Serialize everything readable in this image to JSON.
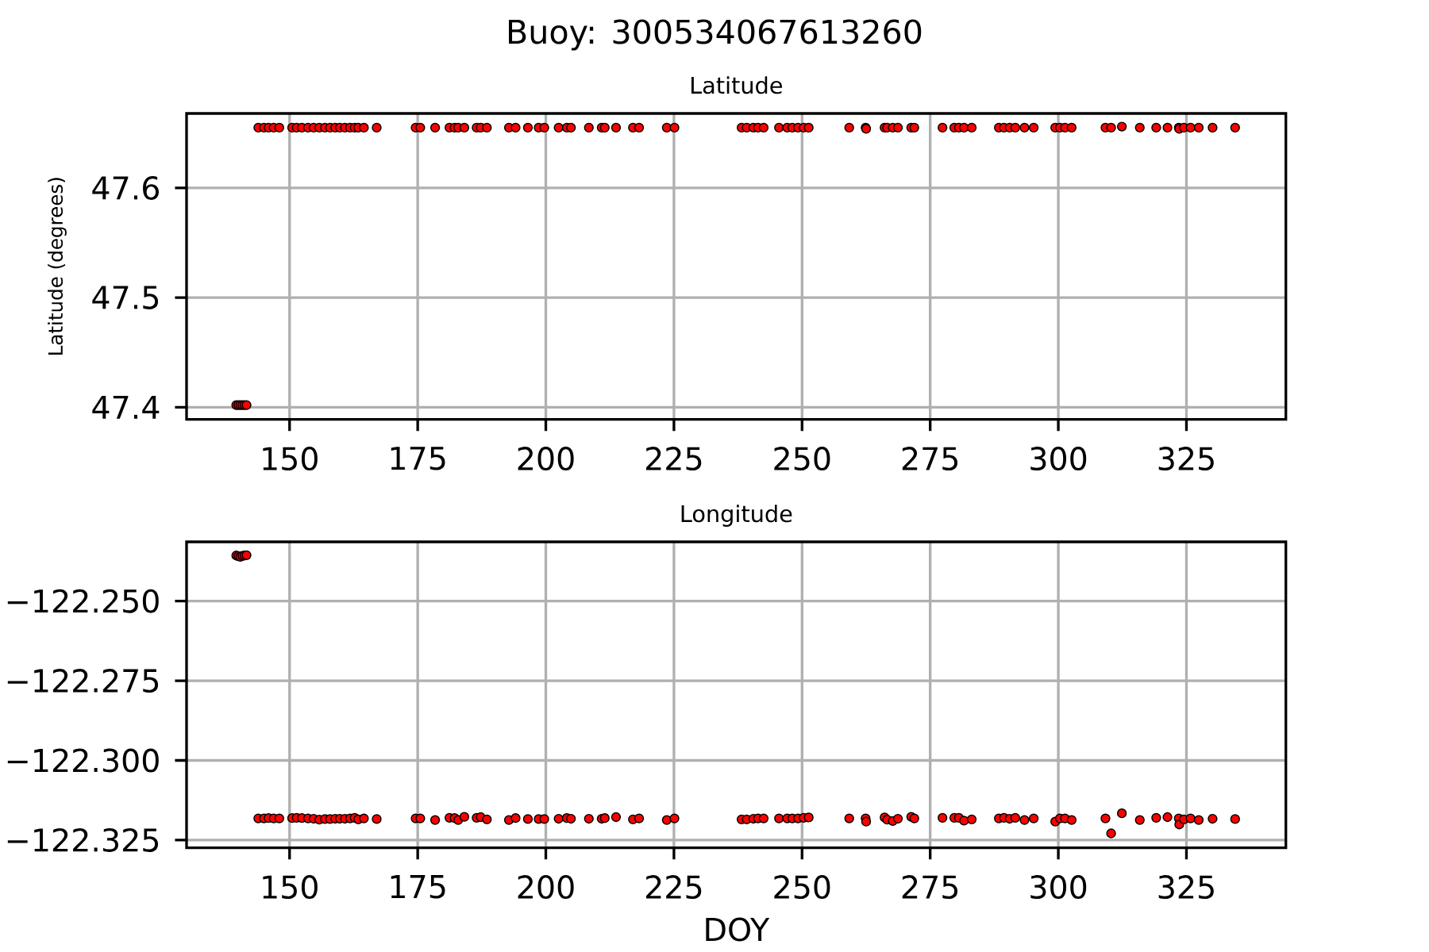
{
  "chart_data": [
    {
      "type": "scatter",
      "title": "Buoy: 300534067613260",
      "subtitle": "Latitude",
      "ylabel": "Latitude (degrees)",
      "color": "#ff0000",
      "marker": "circle",
      "grid": true,
      "xlim": [
        129.9,
        344.4
      ],
      "xticks": [
        150,
        175,
        200,
        225,
        250,
        275,
        300,
        325
      ],
      "ylim": [
        47.389,
        47.668
      ],
      "yticks": [
        47.4,
        47.5,
        47.6
      ],
      "x": [
        139.6,
        140.0,
        140.4,
        140.8,
        141.2,
        141.6,
        143.9,
        145.0,
        145.9,
        146.9,
        148.0,
        150.5,
        151.4,
        152.4,
        153.6,
        154.7,
        155.8,
        156.9,
        157.9,
        158.9,
        159.8,
        160.8,
        161.8,
        162.7,
        163.4,
        164.5,
        167.0,
        174.6,
        175.5,
        178.4,
        181.2,
        182.2,
        182.9,
        184.1,
        186.5,
        187.3,
        188.5,
        192.8,
        194.1,
        196.5,
        198.6,
        199.7,
        202.5,
        204.1,
        204.9,
        208.4,
        210.9,
        211.5,
        213.7,
        217.0,
        218.2,
        223.6,
        225.1,
        238.2,
        239.2,
        240.5,
        241.4,
        242.5,
        245.5,
        247.1,
        248.1,
        249.2,
        250.3,
        251.3,
        259.2,
        262.4,
        262.5,
        266.1,
        266.6,
        267.7,
        268.7,
        271.3,
        271.9,
        277.4,
        279.7,
        280.6,
        281.6,
        283.1,
        288.4,
        289.4,
        290.5,
        291.6,
        293.4,
        295.2,
        299.4,
        300.3,
        301.3,
        302.6,
        309.2,
        310.3,
        312.4,
        315.9,
        319.1,
        321.3,
        323.5,
        323.6,
        324.5,
        325.8,
        327.4,
        330.1,
        334.5
      ],
      "values": [
        47.402,
        47.402,
        47.402,
        47.402,
        47.402,
        47.402,
        47.655,
        47.655,
        47.655,
        47.655,
        47.655,
        47.655,
        47.655,
        47.655,
        47.655,
        47.655,
        47.655,
        47.655,
        47.655,
        47.655,
        47.655,
        47.655,
        47.655,
        47.655,
        47.655,
        47.655,
        47.655,
        47.655,
        47.655,
        47.655,
        47.655,
        47.655,
        47.655,
        47.655,
        47.655,
        47.655,
        47.655,
        47.655,
        47.655,
        47.655,
        47.655,
        47.655,
        47.655,
        47.655,
        47.655,
        47.655,
        47.655,
        47.655,
        47.655,
        47.655,
        47.655,
        47.655,
        47.655,
        47.655,
        47.655,
        47.655,
        47.655,
        47.655,
        47.655,
        47.655,
        47.655,
        47.655,
        47.655,
        47.655,
        47.655,
        47.655,
        47.654,
        47.655,
        47.655,
        47.655,
        47.655,
        47.655,
        47.655,
        47.655,
        47.655,
        47.655,
        47.655,
        47.655,
        47.655,
        47.655,
        47.655,
        47.655,
        47.655,
        47.655,
        47.655,
        47.655,
        47.655,
        47.655,
        47.655,
        47.655,
        47.656,
        47.655,
        47.655,
        47.655,
        47.655,
        47.654,
        47.655,
        47.655,
        47.655,
        47.655,
        47.655
      ]
    },
    {
      "type": "scatter",
      "title": "Longitude",
      "xlabel": "DOY",
      "color": "#ff0000",
      "marker": "circle",
      "grid": true,
      "xlim": [
        129.9,
        344.4
      ],
      "xticks": [
        150,
        175,
        200,
        225,
        250,
        275,
        300,
        325
      ],
      "ylim": [
        -122.3274,
        -122.2314
      ],
      "yticks": [
        {
          "value": -122.325,
          "label": "−122.325"
        },
        {
          "value": -122.3,
          "label": "−122.300"
        },
        {
          "value": -122.275,
          "label": "−122.275"
        },
        {
          "value": -122.25,
          "label": "−122.250"
        }
      ],
      "x": [
        139.6,
        140.0,
        140.4,
        140.8,
        141.2,
        141.6,
        143.9,
        145.0,
        145.9,
        146.9,
        148.0,
        150.5,
        151.4,
        152.4,
        153.6,
        154.7,
        155.8,
        156.9,
        157.9,
        158.9,
        159.8,
        160.8,
        161.8,
        162.7,
        163.4,
        164.5,
        167.0,
        174.6,
        175.5,
        178.4,
        181.2,
        182.2,
        182.9,
        184.1,
        186.5,
        187.3,
        188.5,
        192.8,
        194.1,
        196.5,
        198.6,
        199.7,
        202.5,
        204.1,
        204.9,
        208.4,
        210.9,
        211.5,
        213.7,
        217.0,
        218.2,
        223.6,
        225.1,
        238.2,
        239.2,
        240.5,
        241.4,
        242.5,
        245.5,
        247.1,
        248.1,
        249.2,
        250.3,
        251.3,
        259.2,
        262.4,
        262.5,
        266.1,
        266.6,
        267.7,
        268.7,
        271.3,
        271.9,
        277.4,
        279.7,
        280.6,
        281.6,
        283.1,
        288.4,
        289.4,
        290.5,
        291.6,
        293.4,
        295.2,
        299.4,
        300.3,
        301.3,
        302.6,
        309.2,
        310.3,
        312.4,
        315.9,
        319.1,
        321.3,
        323.5,
        323.6,
        324.5,
        325.8,
        327.4,
        330.1,
        334.5
      ],
      "values": [
        -122.2357,
        -122.2359,
        -122.2361,
        -122.2358,
        -122.2357,
        -122.2356,
        -122.3182,
        -122.3182,
        -122.3181,
        -122.3182,
        -122.3182,
        -122.3181,
        -122.318,
        -122.3181,
        -122.3182,
        -122.3183,
        -122.3186,
        -122.3184,
        -122.3184,
        -122.3183,
        -122.3183,
        -122.3183,
        -122.3182,
        -122.318,
        -122.3185,
        -122.3182,
        -122.3184,
        -122.3182,
        -122.3182,
        -122.3187,
        -122.318,
        -122.3181,
        -122.3187,
        -122.3177,
        -122.318,
        -122.3178,
        -122.3185,
        -122.3187,
        -122.3181,
        -122.3184,
        -122.3184,
        -122.3184,
        -122.3183,
        -122.3181,
        -122.3183,
        -122.3183,
        -122.3183,
        -122.3181,
        -122.3178,
        -122.3185,
        -122.3182,
        -122.3187,
        -122.3182,
        -122.3185,
        -122.3185,
        -122.3183,
        -122.3182,
        -122.3182,
        -122.3182,
        -122.3182,
        -122.3182,
        -122.3182,
        -122.318,
        -122.3179,
        -122.3182,
        -122.3182,
        -122.3192,
        -122.3179,
        -122.3186,
        -122.319,
        -122.3183,
        -122.3177,
        -122.3182,
        -122.318,
        -122.318,
        -122.318,
        -122.3189,
        -122.3185,
        -122.3182,
        -122.318,
        -122.3183,
        -122.318,
        -122.3187,
        -122.3182,
        -122.3192,
        -122.3182,
        -122.3182,
        -122.3187,
        -122.3182,
        -122.3229,
        -122.3166,
        -122.3187,
        -122.318,
        -122.3178,
        -122.3182,
        -122.3201,
        -122.3185,
        -122.3182,
        -122.3187,
        -122.3183,
        -122.3184
      ]
    }
  ]
}
